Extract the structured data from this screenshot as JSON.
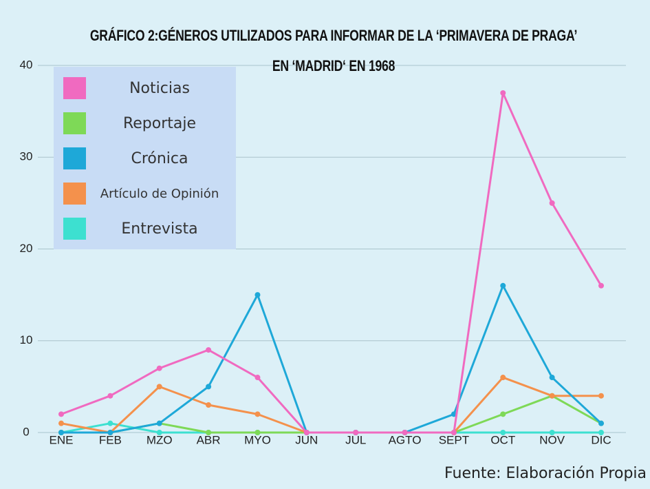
{
  "chart_data": {
    "type": "line",
    "title": "GRÁFICO 2:GÉNEROS UTILIZADOS PARA  INFORMAR DE LA ‘PRIMAVERA DE PRAGA’ EN ‘MADRID‘ EN 1968",
    "source": "Fuente: Elaboración Propia",
    "categories": [
      "ENE",
      "FEB",
      "MZO",
      "ABR",
      "MYO",
      "JUN",
      "JUL",
      "AGTO",
      "SEPT",
      "OCT",
      "NOV",
      "DIC"
    ],
    "series": [
      {
        "name": "Noticias",
        "color": "#f06ac0",
        "values": [
          2,
          4,
          7,
          9,
          6,
          0,
          0,
          0,
          0,
          37,
          25,
          16
        ]
      },
      {
        "name": "Reportaje",
        "color": "#7ed957",
        "values": [
          0,
          0,
          1,
          0,
          0,
          0,
          0,
          0,
          0,
          2,
          4,
          1
        ]
      },
      {
        "name": "Crónica",
        "color": "#1ea8d8",
        "values": [
          0,
          0,
          1,
          5,
          15,
          0,
          0,
          0,
          2,
          16,
          6,
          1
        ]
      },
      {
        "name": "Artículo de Opinión",
        "color": "#f4914c",
        "values": [
          1,
          0,
          5,
          3,
          2,
          0,
          0,
          0,
          0,
          6,
          4,
          4
        ]
      },
      {
        "name": "Entrevista",
        "color": "#3de0d0",
        "values": [
          0,
          1,
          0,
          0,
          0,
          0,
          0,
          0,
          0,
          0,
          0,
          0
        ]
      }
    ],
    "ylim": [
      0,
      40
    ],
    "yticks": [
      0,
      10,
      20,
      30,
      40
    ],
    "grid": true,
    "legend": "upper left"
  }
}
